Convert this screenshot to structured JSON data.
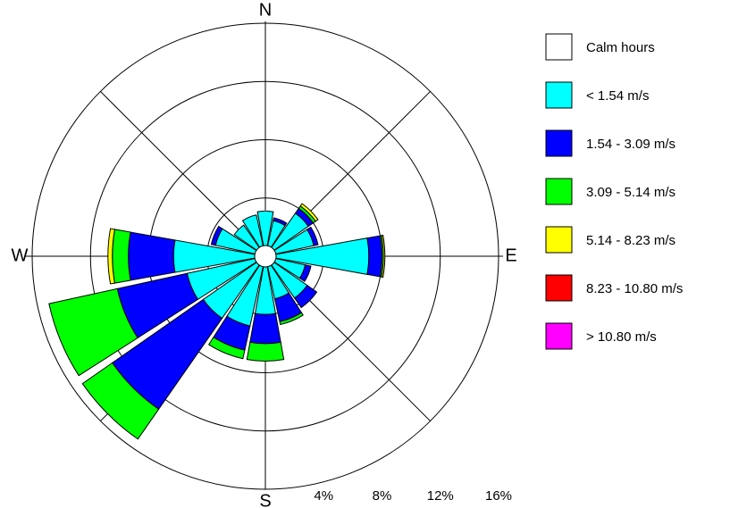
{
  "chart_data": {
    "type": "windrose",
    "categories": [
      "N",
      null,
      null,
      null,
      "E",
      null,
      null,
      null,
      "S",
      null,
      null,
      null,
      "W",
      null,
      null,
      null
    ],
    "calm": {
      "name": "Calm hours",
      "color": "#ffffff"
    },
    "series": [
      {
        "name": "< 1.54 m/s",
        "color": "#00ffff",
        "values": [
          3.1,
          2.5,
          3.6,
          3.4,
          7.1,
          2.8,
          3.5,
          3.0,
          4.0,
          4.9,
          5.2,
          5.5,
          6.3,
          3.5,
          2.6,
          2.9
        ]
      },
      {
        "name": "1.54 - 3.09 m/s",
        "color": "#0000ff",
        "values": [
          0,
          0.2,
          0.4,
          0.3,
          0.9,
          0.4,
          0.8,
          1.6,
          2.0,
          1.7,
          7.6,
          4.9,
          3.1,
          0.3,
          0,
          0
        ]
      },
      {
        "name": "3.09 - 5.14 m/s",
        "color": "#00ff00",
        "values": [
          0,
          0,
          0.2,
          0,
          0.1,
          0,
          0,
          0.2,
          1.2,
          0.6,
          2.5,
          4.8,
          1.1,
          0,
          0,
          0
        ]
      },
      {
        "name": "5.14 - 8.23 m/s",
        "color": "#ffff00",
        "values": [
          0,
          0,
          0.2,
          0,
          0.1,
          0,
          0,
          0,
          0,
          0,
          0,
          0,
          0.3,
          0,
          0,
          0
        ]
      },
      {
        "name": "8.23 - 10.80 m/s",
        "color": "#ff0000",
        "values": [
          0,
          0,
          0,
          0,
          0,
          0,
          0,
          0,
          0,
          0,
          0,
          0,
          0,
          0,
          0,
          0
        ]
      },
      {
        "name": "> 10.80 m/s",
        "color": "#ff00ff",
        "values": [
          0,
          0,
          0,
          0,
          0,
          0,
          0,
          0,
          0,
          0,
          0,
          0,
          0,
          0,
          0,
          0
        ]
      }
    ],
    "rlim": [
      0,
      16
    ],
    "rticks": [
      {
        "value": 4,
        "label": "4%"
      },
      {
        "value": 8,
        "label": "8%"
      },
      {
        "value": 12,
        "label": "12%"
      },
      {
        "value": 16,
        "label": "16%"
      }
    ]
  }
}
